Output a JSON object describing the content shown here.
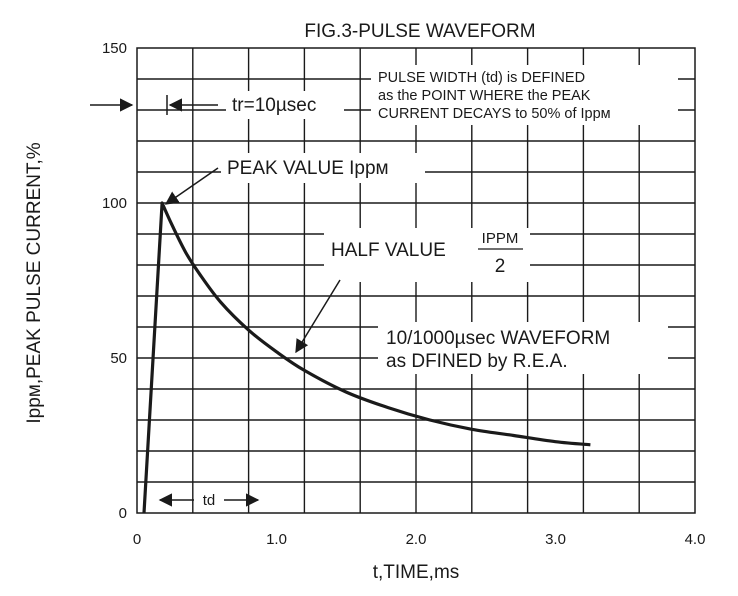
{
  "chart_data": {
    "type": "line",
    "title": "FIG.3-PULSE WAVEFORM",
    "xlabel": "t,TIME,ms",
    "ylabel": "Ippм,PEAK PULSE CURRENT,%",
    "xlim": [
      0,
      4.0
    ],
    "ylim": [
      0,
      150
    ],
    "grid": true,
    "x_ticks": [
      "0",
      "1.0",
      "2.0",
      "3.0",
      "4.0"
    ],
    "y_ticks": [
      "0",
      "50",
      "100",
      "150"
    ],
    "series": [
      {
        "x": [
          0.05,
          0.18,
          0.25,
          0.35,
          0.45,
          0.6,
          0.8,
          1.0,
          1.2,
          1.5,
          1.8,
          2.1,
          2.4,
          2.7,
          3.0,
          3.25
        ],
        "y": [
          0,
          100,
          93,
          84,
          77,
          68,
          59,
          52,
          46,
          39,
          34,
          30,
          27,
          25,
          23,
          22
        ]
      }
    ],
    "annotations": {
      "pulse_width_line1": "PULSE WIDTH (td) is DEFINED",
      "pulse_width_line2": "as the POINT WHERE the PEAK",
      "pulse_width_line3": "CURRENT DECAYS to 50% of Ippм",
      "rise_time": "tr=10µsec",
      "peak_value": "PEAK VALUE Ippм",
      "half_value_prefix": "HALF VALUE",
      "half_value_numerator": "IPPM",
      "half_value_denominator": "2",
      "waveform_line1": "10/1000µsec WAVEFORM",
      "waveform_line2": "as DFINED by R.E.A.",
      "td_label": "td"
    }
  }
}
